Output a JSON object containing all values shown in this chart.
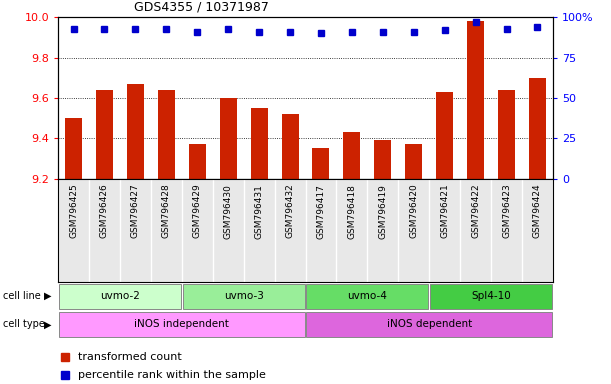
{
  "title": "GDS4355 / 10371987",
  "samples": [
    "GSM796425",
    "GSM796426",
    "GSM796427",
    "GSM796428",
    "GSM796429",
    "GSM796430",
    "GSM796431",
    "GSM796432",
    "GSM796417",
    "GSM796418",
    "GSM796419",
    "GSM796420",
    "GSM796421",
    "GSM796422",
    "GSM796423",
    "GSM796424"
  ],
  "transformed_count": [
    9.5,
    9.64,
    9.67,
    9.64,
    9.37,
    9.6,
    9.55,
    9.52,
    9.35,
    9.43,
    9.39,
    9.37,
    9.63,
    9.98,
    9.64,
    9.7
  ],
  "percentile_display": [
    93,
    93,
    93,
    93,
    91,
    93,
    91,
    91,
    90,
    91,
    91,
    91,
    92,
    97,
    93,
    94
  ],
  "cell_lines": [
    {
      "label": "uvmo-2",
      "start": 0,
      "end": 3,
      "color": "#ccffcc"
    },
    {
      "label": "uvmo-3",
      "start": 4,
      "end": 7,
      "color": "#99ee99"
    },
    {
      "label": "uvmo-4",
      "start": 8,
      "end": 11,
      "color": "#66dd66"
    },
    {
      "label": "Spl4-10",
      "start": 12,
      "end": 15,
      "color": "#44cc44"
    }
  ],
  "cell_types": [
    {
      "label": "iNOS independent",
      "start": 0,
      "end": 7,
      "color": "#ff99ff"
    },
    {
      "label": "iNOS dependent",
      "start": 8,
      "end": 15,
      "color": "#dd66dd"
    }
  ],
  "ylim_left": [
    9.2,
    10.0
  ],
  "ylim_right": [
    0,
    100
  ],
  "bar_color": "#cc2200",
  "dot_color": "#0000cc",
  "yticks_left": [
    9.2,
    9.4,
    9.6,
    9.8,
    10.0
  ],
  "yticks_right": [
    0,
    25,
    50,
    75,
    100
  ],
  "background_color": "#ffffff"
}
